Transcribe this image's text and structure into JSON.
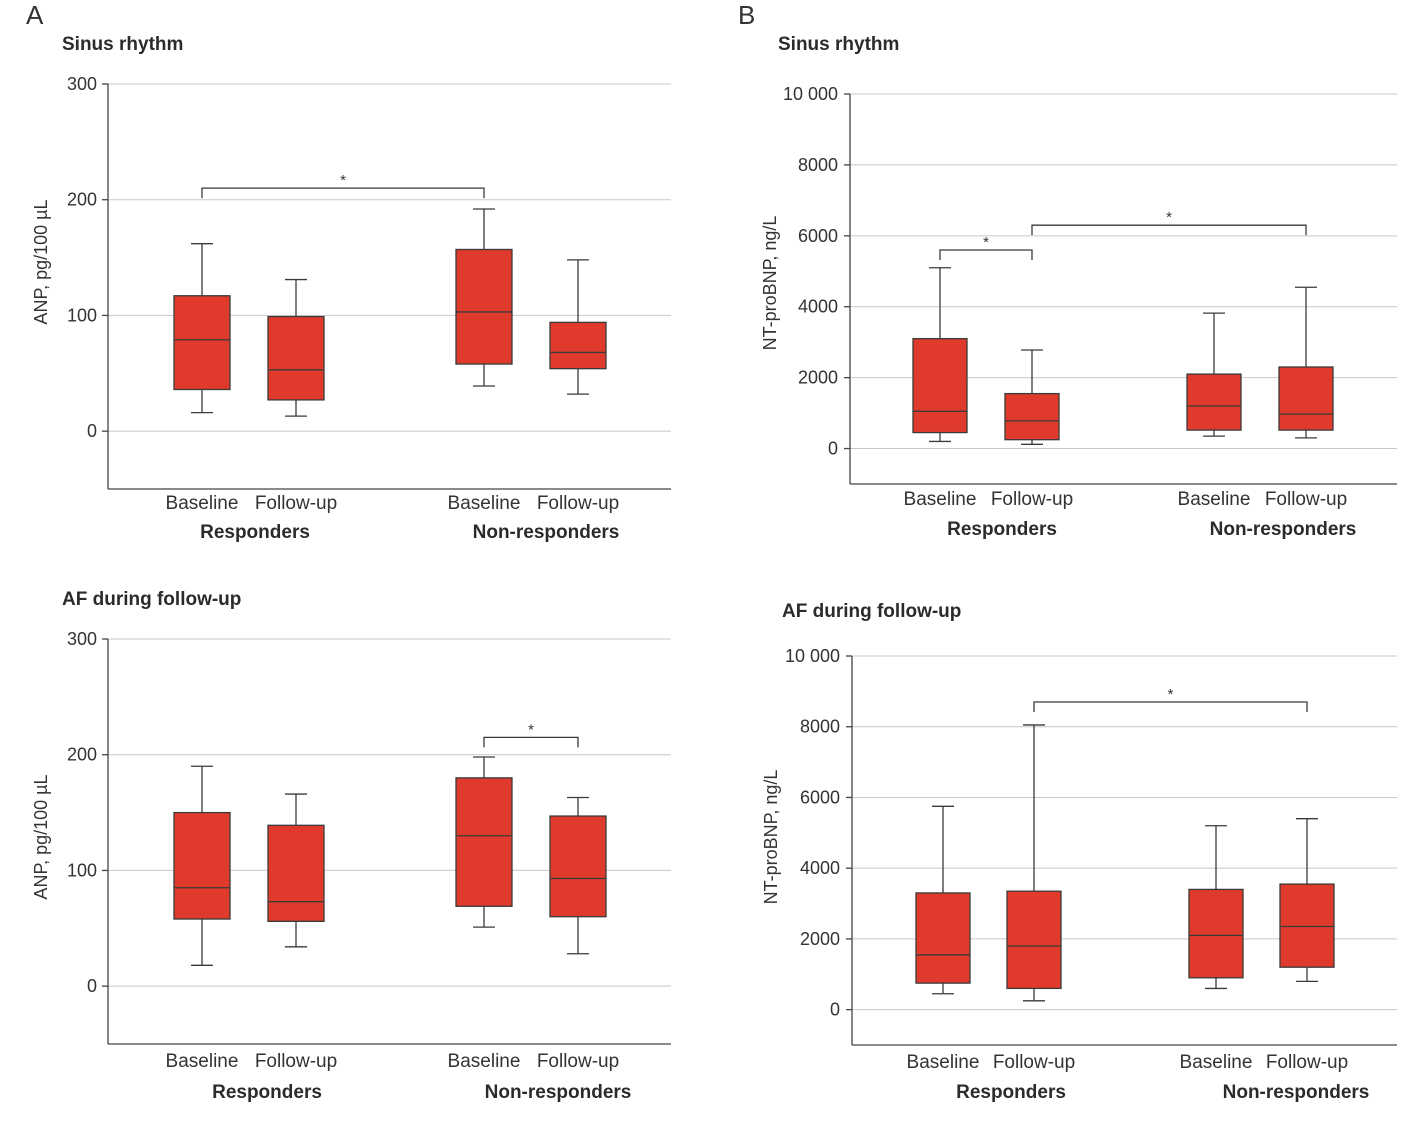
{
  "panel_letters": [
    "A",
    "B"
  ],
  "colors": {
    "box_fill": "#e03a2c",
    "grid": "#c8c8c8",
    "axis": "#444444"
  },
  "chart_data": [
    {
      "type": "box",
      "panel": "A",
      "title": "Sinus rhythm",
      "ylabel": "ANP, pg/100 µL",
      "ylim": [
        -50,
        300
      ],
      "yticks": [
        0,
        100,
        200,
        300
      ],
      "ytick_labels": [
        "0",
        "100",
        "200",
        "300"
      ],
      "grid": true,
      "categories": [
        "Baseline",
        "Follow-up",
        "Baseline",
        "Follow-up"
      ],
      "groups": [
        "Responders",
        "Non-responders"
      ],
      "boxes": [
        {
          "min": 16,
          "q1": 36,
          "median": 79,
          "q3": 117,
          "max": 162
        },
        {
          "min": 13,
          "q1": 27,
          "median": 53,
          "q3": 99,
          "max": 131
        },
        {
          "min": 39,
          "q1": 58,
          "median": 103,
          "q3": 157,
          "max": 192
        },
        {
          "min": 32,
          "q1": 54,
          "median": 68,
          "q3": 94,
          "max": 148
        }
      ],
      "significance": [
        {
          "from": 0,
          "to": 2,
          "label": "*",
          "y": 210
        }
      ]
    },
    {
      "type": "box",
      "panel": "B",
      "title": "Sinus rhythm",
      "ylabel": "NT-proBNP, ng/L",
      "ylim": [
        -1000,
        10000
      ],
      "yticks": [
        0,
        2000,
        4000,
        6000,
        8000,
        10000
      ],
      "ytick_labels": [
        "0",
        "2000",
        "4000",
        "6000",
        "8000",
        "10 000"
      ],
      "grid": true,
      "categories": [
        "Baseline",
        "Follow-up",
        "Baseline",
        "Follow-up"
      ],
      "groups": [
        "Responders",
        "Non-responders"
      ],
      "boxes": [
        {
          "min": 200,
          "q1": 450,
          "median": 1050,
          "q3": 3100,
          "max": 5100
        },
        {
          "min": 120,
          "q1": 250,
          "median": 780,
          "q3": 1550,
          "max": 2780
        },
        {
          "min": 350,
          "q1": 520,
          "median": 1200,
          "q3": 2100,
          "max": 3820
        },
        {
          "min": 300,
          "q1": 520,
          "median": 970,
          "q3": 2300,
          "max": 4550
        }
      ],
      "significance": [
        {
          "from": 0,
          "to": 1,
          "label": "*",
          "y": 5600
        },
        {
          "from": 1,
          "to": 3,
          "label": "*",
          "y": 6300
        }
      ]
    },
    {
      "type": "box",
      "panel": "A",
      "title": "AF during follow-up",
      "ylabel": "ANP, pg/100 µL",
      "ylim": [
        -50,
        300
      ],
      "yticks": [
        0,
        100,
        200,
        300
      ],
      "ytick_labels": [
        "0",
        "100",
        "200",
        "300"
      ],
      "grid": true,
      "categories": [
        "Baseline",
        "Follow-up",
        "Baseline",
        "Follow-up"
      ],
      "groups": [
        "Responders",
        "Non-responders"
      ],
      "boxes": [
        {
          "min": 18,
          "q1": 58,
          "median": 85,
          "q3": 150,
          "max": 190
        },
        {
          "min": 34,
          "q1": 56,
          "median": 73,
          "q3": 139,
          "max": 166
        },
        {
          "min": 51,
          "q1": 69,
          "median": 130,
          "q3": 180,
          "max": 198
        },
        {
          "min": 28,
          "q1": 60,
          "median": 93,
          "q3": 147,
          "max": 163
        }
      ],
      "significance": [
        {
          "from": 2,
          "to": 3,
          "label": "*",
          "y": 215
        }
      ]
    },
    {
      "type": "box",
      "panel": "B",
      "title": "AF during follow-up",
      "ylabel": "NT-proBNP, ng/L",
      "ylim": [
        -1000,
        10000
      ],
      "yticks": [
        0,
        2000,
        4000,
        6000,
        8000,
        10000
      ],
      "ytick_labels": [
        "0",
        "2000",
        "4000",
        "6000",
        "8000",
        "10 000"
      ],
      "grid": true,
      "categories": [
        "Baseline",
        "Follow-up",
        "Baseline",
        "Follow-up"
      ],
      "groups": [
        "Responders",
        "Non-responders"
      ],
      "boxes": [
        {
          "min": 450,
          "q1": 750,
          "median": 1550,
          "q3": 3300,
          "max": 5750
        },
        {
          "min": 250,
          "q1": 600,
          "median": 1800,
          "q3": 3350,
          "max": 8050
        },
        {
          "min": 600,
          "q1": 900,
          "median": 2100,
          "q3": 3400,
          "max": 5200
        },
        {
          "min": 800,
          "q1": 1200,
          "median": 2350,
          "q3": 3550,
          "max": 5400
        }
      ],
      "significance": [
        {
          "from": 1,
          "to": 3,
          "label": "*",
          "y": 8700
        }
      ]
    }
  ]
}
